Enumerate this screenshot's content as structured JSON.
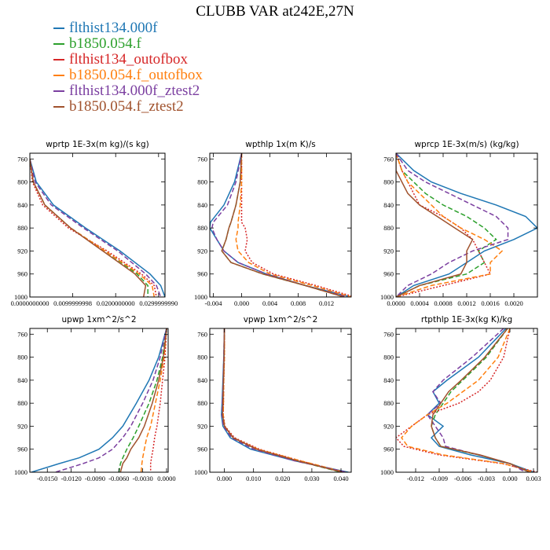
{
  "title": "CLUBB VAR at242E,27N",
  "legend": [
    {
      "label": "flthist134.000f",
      "color": "#1f77b4"
    },
    {
      "label": "b1850.054.f",
      "color": "#2ca02c"
    },
    {
      "label": "flthist134_outofbox",
      "color": "#d62728"
    },
    {
      "label": "b1850.054.f_outofbox",
      "color": "#ff7f0e"
    },
    {
      "label": "flthist134.000f_ztest2",
      "color": "#7b3fa0"
    },
    {
      "label": "b1850.054.f_ztest2",
      "color": "#a0522d"
    }
  ],
  "chart_data": [
    {
      "type": "line",
      "title": "wprtp   1E-3x(m kg)/(s kg)",
      "xlim": [
        0.0,
        0.0315
      ],
      "ylim": [
        750,
        1000
      ],
      "y_inverted": true,
      "xticks": [
        0.0,
        0.01,
        0.02,
        0.03
      ],
      "xtick_labels": [
        "0.0000000000",
        "0.0099999998",
        "0.0200000000",
        "0.0299999990"
      ],
      "yticks": [
        760,
        800,
        840,
        880,
        920,
        960,
        1000
      ],
      "pressure": [
        760,
        800,
        840,
        880,
        920,
        960,
        980,
        1000
      ],
      "series": [
        {
          "values": [
            0.0,
            0.0015,
            0.0055,
            0.013,
            0.021,
            0.028,
            0.0305,
            0.0315
          ]
        },
        {
          "values": [
            0.0,
            0.0008,
            0.0035,
            0.0095,
            0.0175,
            0.025,
            0.0275,
            0.0275
          ]
        },
        {
          "values": [
            0.0,
            0.0006,
            0.003,
            0.009,
            0.018,
            0.026,
            0.029,
            0.0295
          ]
        },
        {
          "values": [
            0.0,
            0.0008,
            0.0035,
            0.0095,
            0.0175,
            0.0255,
            0.0285,
            0.029
          ]
        },
        {
          "values": [
            0.0,
            0.0012,
            0.005,
            0.0125,
            0.0205,
            0.027,
            0.0295,
            0.0305
          ]
        },
        {
          "values": [
            0.0,
            0.0008,
            0.0035,
            0.0095,
            0.017,
            0.0245,
            0.027,
            0.0265
          ]
        }
      ]
    },
    {
      "type": "line",
      "title": "wpthlp   1x(m K)/s",
      "xlim": [
        -0.0045,
        0.0155
      ],
      "ylim": [
        750,
        1000
      ],
      "y_inverted": true,
      "xticks": [
        -0.004,
        0.0,
        0.004,
        0.008,
        0.012
      ],
      "xtick_labels": [
        "-0.004",
        "0.000",
        "0.004",
        "0.008",
        "0.012"
      ],
      "yticks": [
        760,
        800,
        840,
        880,
        920,
        960,
        1000
      ],
      "pressure": [
        750,
        800,
        840,
        870,
        880,
        900,
        920,
        940,
        960,
        980,
        1000
      ],
      "series": [
        {
          "values": [
            0.0,
            -0.001,
            -0.0025,
            -0.0044,
            -0.0045,
            -0.0035,
            -0.0025,
            -0.0005,
            0.0035,
            0.009,
            0.0155
          ]
        },
        {
          "values": [
            0.0,
            -0.0002,
            -0.0008,
            -0.0015,
            -0.0018,
            -0.0022,
            -0.0028,
            -0.0015,
            0.003,
            0.009,
            0.0145
          ]
        },
        {
          "values": [
            0.0,
            0.0,
            0.0,
            0.0,
            0.0005,
            0.0008,
            0.0005,
            0.0015,
            0.0045,
            0.0105,
            0.016
          ]
        },
        {
          "values": [
            0.0,
            0.0,
            -0.0002,
            -0.0005,
            -0.0005,
            -0.0008,
            -0.0005,
            0.001,
            0.004,
            0.01,
            0.0155
          ]
        },
        {
          "values": [
            0.0,
            -0.0008,
            -0.002,
            -0.004,
            -0.0042,
            -0.0035,
            -0.0025,
            -0.0005,
            0.0035,
            0.009,
            0.015
          ]
        },
        {
          "values": [
            0.0,
            -0.0002,
            -0.0008,
            -0.0015,
            -0.0018,
            -0.0022,
            -0.0028,
            -0.0015,
            0.003,
            0.009,
            0.0145
          ]
        }
      ]
    },
    {
      "type": "line",
      "title": "wprcp   1E-3x(m/s) (kg/kg)",
      "xlim": [
        0.0,
        0.0024
      ],
      "ylim": [
        750,
        1000
      ],
      "y_inverted": true,
      "xticks": [
        0.0,
        0.0004,
        0.0008,
        0.0012,
        0.0016,
        0.002
      ],
      "xtick_labels": [
        "0.0000",
        "0.0004",
        "0.0008",
        "0.0012",
        "0.0016",
        "0.0020"
      ],
      "yticks": [
        760,
        800,
        840,
        880,
        920,
        960,
        1000
      ],
      "pressure": [
        750,
        780,
        800,
        820,
        840,
        860,
        880,
        900,
        920,
        940,
        960,
        980,
        1000
      ],
      "series": [
        {
          "values": [
            0.0,
            0.0003,
            0.0006,
            0.0011,
            0.0017,
            0.0022,
            0.0024,
            0.002,
            0.0015,
            0.0012,
            0.0009,
            0.0003,
            0.0
          ]
        },
        {
          "values": [
            0.0,
            0.0001,
            0.0003,
            0.0005,
            0.0008,
            0.0012,
            0.0015,
            0.0017,
            0.0014,
            0.0015,
            0.0012,
            0.0004,
            0.0
          ]
        },
        {
          "values": [
            0.0,
            0.0001,
            0.0002,
            0.0003,
            0.0004,
            0.0008,
            0.0011,
            0.0013,
            0.0014,
            0.0015,
            0.0016,
            0.0008,
            0.0
          ]
        },
        {
          "values": [
            0.0,
            0.0001,
            0.0002,
            0.0004,
            0.0006,
            0.0008,
            0.0011,
            0.0015,
            0.0018,
            0.0016,
            0.0016,
            0.0006,
            0.0
          ]
        },
        {
          "values": [
            0.0,
            0.0002,
            0.0005,
            0.0009,
            0.0013,
            0.0017,
            0.0019,
            0.0019,
            0.0013,
            0.0009,
            0.0006,
            0.0002,
            0.0
          ]
        },
        {
          "values": [
            0.0,
            0.0,
            0.0001,
            0.0002,
            0.0004,
            0.0007,
            0.001,
            0.0013,
            0.0012,
            0.0012,
            0.0011,
            0.0004,
            0.0
          ]
        }
      ]
    },
    {
      "type": "line",
      "title": "upwp   1xm^2/s^2",
      "xlim": [
        -0.0172,
        0.0002
      ],
      "ylim": [
        750,
        1000
      ],
      "y_inverted": true,
      "xticks": [
        -0.015,
        -0.012,
        -0.009,
        -0.006,
        -0.003,
        0.0
      ],
      "xtick_labels": [
        "-0.0150",
        "-0.0120",
        "-0.0090",
        "-0.0060",
        "-0.0030",
        "0.0000"
      ],
      "yticks": [
        760,
        800,
        840,
        880,
        920,
        960,
        1000
      ],
      "pressure": [
        750,
        800,
        840,
        880,
        920,
        940,
        960,
        975,
        985,
        1000
      ],
      "series": [
        {
          "values": [
            0.0,
            -0.001,
            -0.0022,
            -0.0038,
            -0.0055,
            -0.0068,
            -0.0085,
            -0.011,
            -0.0135,
            -0.017
          ]
        },
        {
          "values": [
            0.0,
            -0.0005,
            -0.0012,
            -0.0022,
            -0.0035,
            -0.0042,
            -0.005,
            -0.0055,
            -0.0058,
            -0.006
          ]
        },
        {
          "values": [
            0.0,
            -0.0002,
            -0.0005,
            -0.0008,
            -0.0012,
            -0.0015,
            -0.0017,
            -0.0019,
            -0.002,
            -0.002
          ]
        },
        {
          "values": [
            0.0,
            -0.0003,
            -0.0008,
            -0.0014,
            -0.002,
            -0.0025,
            -0.0028,
            -0.003,
            -0.0031,
            -0.0032
          ]
        },
        {
          "values": [
            0.0,
            -0.0008,
            -0.0017,
            -0.003,
            -0.0045,
            -0.0055,
            -0.0068,
            -0.0085,
            -0.0105,
            -0.014
          ]
        },
        {
          "values": [
            0.0,
            -0.0004,
            -0.001,
            -0.0018,
            -0.0028,
            -0.0035,
            -0.0045,
            -0.005,
            -0.0055,
            -0.0058
          ]
        }
      ]
    },
    {
      "type": "line",
      "title": "vpwp   1xm^2/s^2",
      "xlim": [
        -0.005,
        0.0435
      ],
      "ylim": [
        750,
        1000
      ],
      "y_inverted": true,
      "xticks": [
        0.0,
        0.01,
        0.02,
        0.03,
        0.04
      ],
      "xtick_labels": [
        "0.000",
        "0.010",
        "0.020",
        "0.030",
        "0.040"
      ],
      "yticks": [
        760,
        800,
        840,
        880,
        920,
        960,
        1000
      ],
      "pressure": [
        750,
        800,
        840,
        880,
        900,
        920,
        940,
        960,
        980,
        1000
      ],
      "series": [
        {
          "values": [
            0.0,
            -0.0002,
            -0.0005,
            -0.0008,
            -0.001,
            -0.0005,
            0.002,
            0.009,
            0.024,
            0.0425
          ]
        },
        {
          "values": [
            0.0,
            -0.0001,
            -0.0003,
            -0.0005,
            -0.0006,
            0.0,
            0.003,
            0.011,
            0.025,
            0.04
          ]
        },
        {
          "values": [
            0.0,
            0.0,
            -0.0002,
            -0.0003,
            -0.0004,
            0.0002,
            0.0035,
            0.012,
            0.026,
            0.041
          ]
        },
        {
          "values": [
            0.0,
            0.0,
            -0.0002,
            -0.0003,
            -0.0004,
            0.0001,
            0.003,
            0.0115,
            0.026,
            0.0415
          ]
        },
        {
          "values": [
            0.0,
            -0.0002,
            -0.0004,
            -0.0007,
            -0.0008,
            -0.0003,
            0.0025,
            0.01,
            0.024,
            0.042
          ]
        },
        {
          "values": [
            0.0,
            -0.0001,
            -0.0003,
            -0.0005,
            -0.0006,
            0.0,
            0.003,
            0.011,
            0.025,
            0.0405
          ]
        }
      ]
    },
    {
      "type": "line",
      "title": "rtpthlp   1E-3x(kg K)/kg",
      "xlim": [
        -0.0145,
        0.0035
      ],
      "ylim": [
        750,
        1000
      ],
      "y_inverted": true,
      "xticks": [
        -0.012,
        -0.009,
        -0.006,
        -0.003,
        0.0,
        0.003
      ],
      "xtick_labels": [
        "-0.012",
        "-0.009",
        "-0.006",
        "-0.003",
        "0.000",
        "0.003"
      ],
      "yticks": [
        760,
        800,
        840,
        880,
        920,
        960,
        1000
      ],
      "pressure": [
        750,
        800,
        840,
        860,
        880,
        900,
        920,
        940,
        955,
        970,
        985,
        1000
      ],
      "series": [
        {
          "values": [
            -0.0005,
            -0.004,
            -0.008,
            -0.0098,
            -0.009,
            -0.0105,
            -0.0085,
            -0.01,
            -0.009,
            -0.005,
            0.0,
            0.003
          ]
        },
        {
          "values": [
            -0.0003,
            -0.003,
            -0.006,
            -0.0075,
            -0.0085,
            -0.0095,
            -0.01,
            -0.0095,
            -0.0088,
            -0.004,
            0.0,
            0.0025
          ]
        },
        {
          "values": [
            0.0,
            -0.0008,
            -0.0025,
            -0.004,
            -0.0065,
            -0.0105,
            -0.0125,
            -0.0145,
            -0.0135,
            -0.009,
            -0.001,
            0.0035
          ]
        },
        {
          "values": [
            0.0,
            -0.0015,
            -0.004,
            -0.006,
            -0.008,
            -0.0105,
            -0.0125,
            -0.0138,
            -0.013,
            -0.0085,
            -0.0008,
            0.003
          ]
        },
        {
          "values": [
            -0.0008,
            -0.0048,
            -0.0085,
            -0.0098,
            -0.0088,
            -0.0105,
            -0.0095,
            -0.0085,
            -0.0082,
            -0.004,
            0.0,
            0.002
          ]
        },
        {
          "values": [
            -0.0003,
            -0.0032,
            -0.0062,
            -0.0078,
            -0.0088,
            -0.0098,
            -0.01,
            -0.0095,
            -0.0088,
            -0.0038,
            0.0,
            0.0025
          ]
        }
      ]
    }
  ]
}
